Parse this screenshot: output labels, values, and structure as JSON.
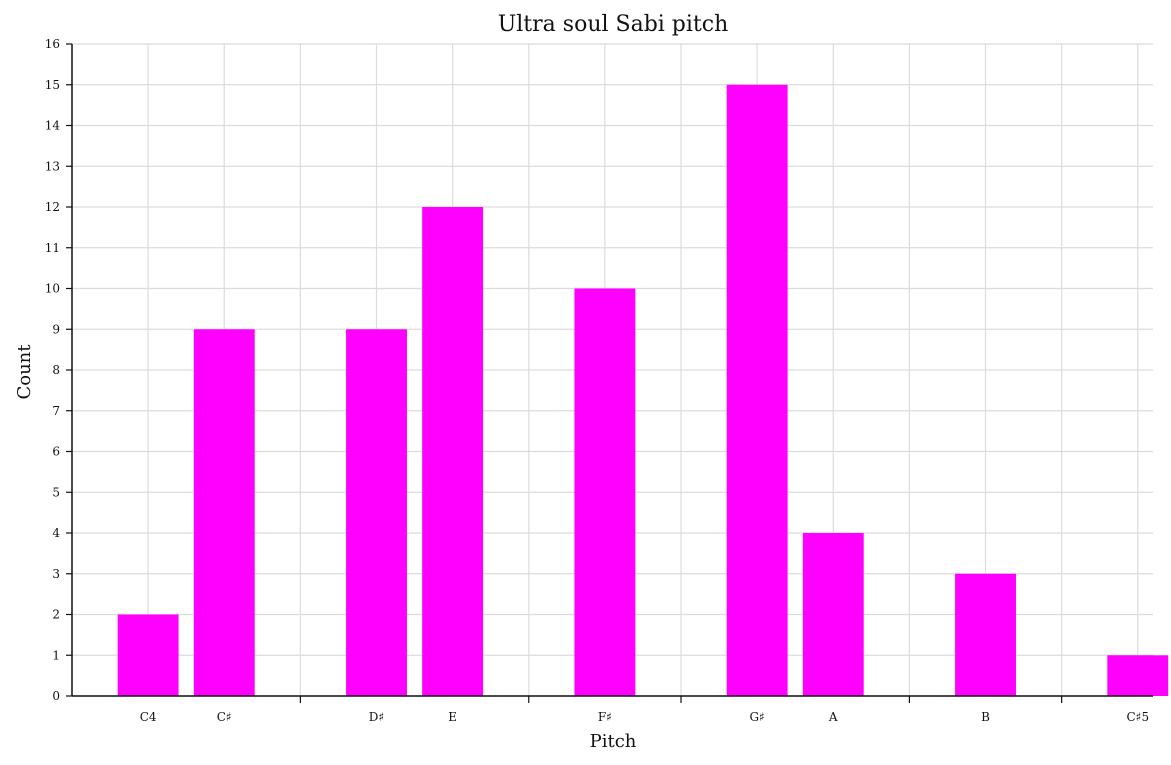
{
  "chart_data": {
    "type": "bar",
    "title": "Ultra soul Sabi pitch",
    "xlabel": "Pitch",
    "ylabel": "Count",
    "ylim": [
      0,
      16
    ],
    "yticks": [
      0,
      1,
      2,
      3,
      4,
      5,
      6,
      7,
      8,
      9,
      10,
      11,
      12,
      13,
      14,
      15,
      16
    ],
    "xlim": [
      -1,
      13.2
    ],
    "x_positions": [
      0,
      1,
      3,
      4,
      6,
      8,
      9,
      11,
      13
    ],
    "categories": [
      "C4",
      "C♯",
      "D♯",
      "E",
      "F♯",
      "G♯",
      "A",
      "B",
      "C♯5"
    ],
    "values": [
      2,
      9,
      9,
      12,
      10,
      15,
      4,
      3,
      1
    ],
    "octave_separators": [
      2,
      5,
      7,
      10,
      12
    ],
    "bar_width": 0.8,
    "grid": true,
    "color": "#ff00ff"
  }
}
